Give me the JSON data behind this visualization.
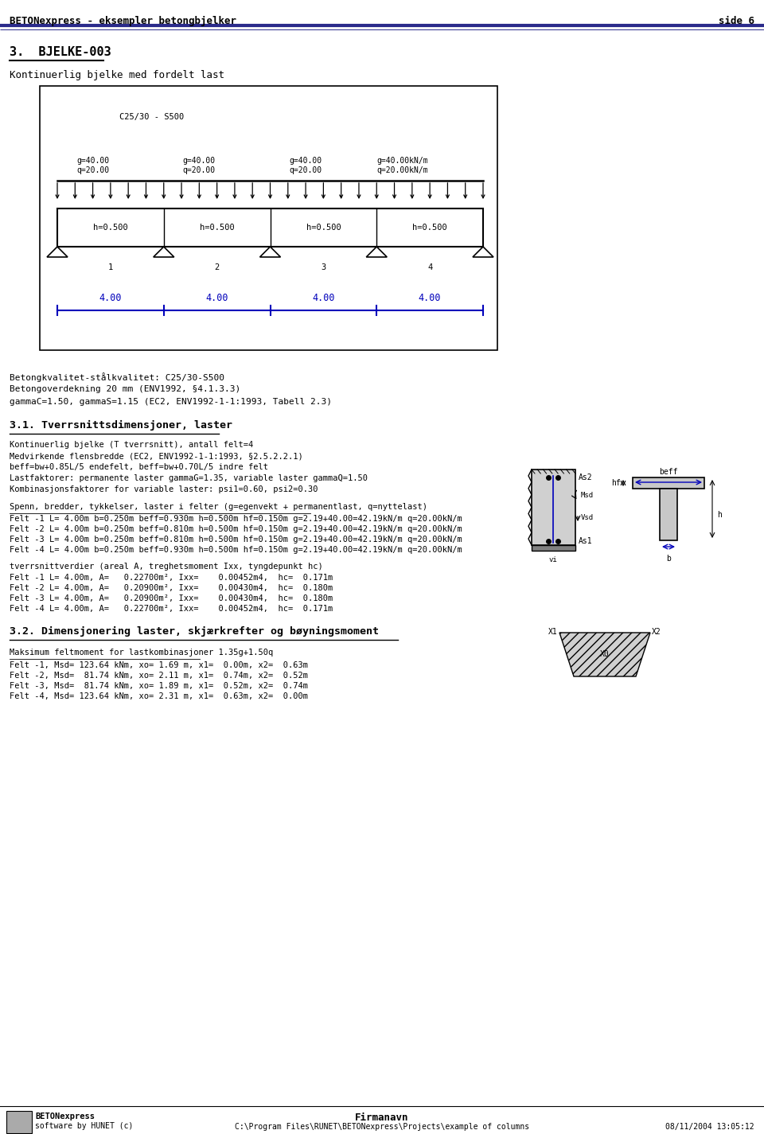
{
  "header_left": "BETONexpress - eksempler betongbjelker",
  "header_right": "side 6",
  "header_line_color": "#2B2B8B",
  "section_title": "3.  BJELKE-003",
  "section_subtitle": "Kontinuerlig bjelke med fordelt last",
  "box_material": "C25/30 - S500",
  "load_labels": [
    "g=40.00\nq=20.00",
    "g=40.00\nq=20.00",
    "g=40.00\nq=20.00",
    "g=40.00kN/m\nq=20.00kN/m"
  ],
  "span_labels": [
    "h=0.500",
    "h=0.500",
    "h=0.500",
    "h=0.500"
  ],
  "dim_labels": [
    "4.00",
    "4.00",
    "4.00",
    "4.00"
  ],
  "body_text_lines": [
    "Betongkvalitet-stålkvalitet: C25/30-S500",
    "Betongoverdekning 20 mm (ENV1992, §4.1.3.3)",
    "gammaC=1.50, gammaS=1.15 (EC2, ENV1992-1-1:1993, Tabell 2.3)"
  ],
  "section_31_title": "3.1. Tverrsnittsdimensjoner, laster",
  "section_31_lines": [
    "Kontinuerlig bjelke (T tverrsnitt), antall felt=4",
    "Medvirkende flensbredde (EC2, ENV1992-1-1:1993, §2.5.2.2.1)",
    "beff=bw+0.85L/5 endefelt, beff=bw+0.70L/5 indre felt",
    "Lastfaktorer: permanente laster gammaG=1.35, variable laster gammaQ=1.50",
    "Kombinasjonsfaktorer for variable laster: psi1=0.60, psi2=0.30"
  ],
  "section_spenn_title": "Spenn, bredder, tykkelser, laster i felter (g=egenvekt + permanentlast, q=nyttelast)",
  "spenn_lines": [
    "Felt -1 L= 4.00m b=0.250m beff=0.930m h=0.500m hf=0.150m g=2.19+40.00=42.19kN/m q=20.00kN/m",
    "Felt -2 L= 4.00m b=0.250m beff=0.810m h=0.500m hf=0.150m g=2.19+40.00=42.19kN/m q=20.00kN/m",
    "Felt -3 L= 4.00m b=0.250m beff=0.810m h=0.500m hf=0.150m g=2.19+40.00=42.19kN/m q=20.00kN/m",
    "Felt -4 L= 4.00m b=0.250m beff=0.930m h=0.500m hf=0.150m g=2.19+40.00=42.19kN/m q=20.00kN/m"
  ],
  "section_tverrsnitt_title": "tverrsnittverdier (areal A, treghetsmoment Ixx, tyngdepunkt hc)",
  "tverrsnitt_lines": [
    "Felt -1 L= 4.00m, A=   0.22700m², Ixx=    0.00452m4,  hc=  0.171m",
    "Felt -2 L= 4.00m, A=   0.20900m², Ixx=    0.00430m4,  hc=  0.180m",
    "Felt -3 L= 4.00m, A=   0.20900m², Ixx=    0.00430m4,  hc=  0.180m",
    "Felt -4 L= 4.00m, A=   0.22700m², Ixx=    0.00452m4,  hc=  0.171m"
  ],
  "section_32_title": "3.2. Dimensjonering laster, skjærkrefter og bøyningsmoment",
  "section_32_subtitle": "Maksimum feltmoment for lastkombinasjoner 1.35g+1.50q",
  "section_32_lines": [
    "Felt -1, Msd= 123.64 kNm, xo= 1.69 m, x1=  0.00m, x2=  0.63m",
    "Felt -2, Msd=  81.74 kNm, xo= 2.11 m, x1=  0.74m, x2=  0.52m",
    "Felt -3, Msd=  81.74 kNm, xo= 1.89 m, x1=  0.52m, x2=  0.74m",
    "Felt -4, Msd= 123.64 kNm, xo= 2.31 m, x1=  0.63m, x2=  0.00m"
  ],
  "footer_left1": "BETONexpress",
  "footer_left2": "software by HUNET (c)",
  "footer_center": "Firmanavn",
  "footer_path": "C:\\Program Files\\RUNET\\BETONexpress\\Projects\\example of columns",
  "footer_date": "08/11/2004 13:05:12",
  "bg_color": "#ffffff",
  "text_color": "#000000",
  "blue_color": "#0000BB",
  "dark_blue": "#2B2B8B"
}
